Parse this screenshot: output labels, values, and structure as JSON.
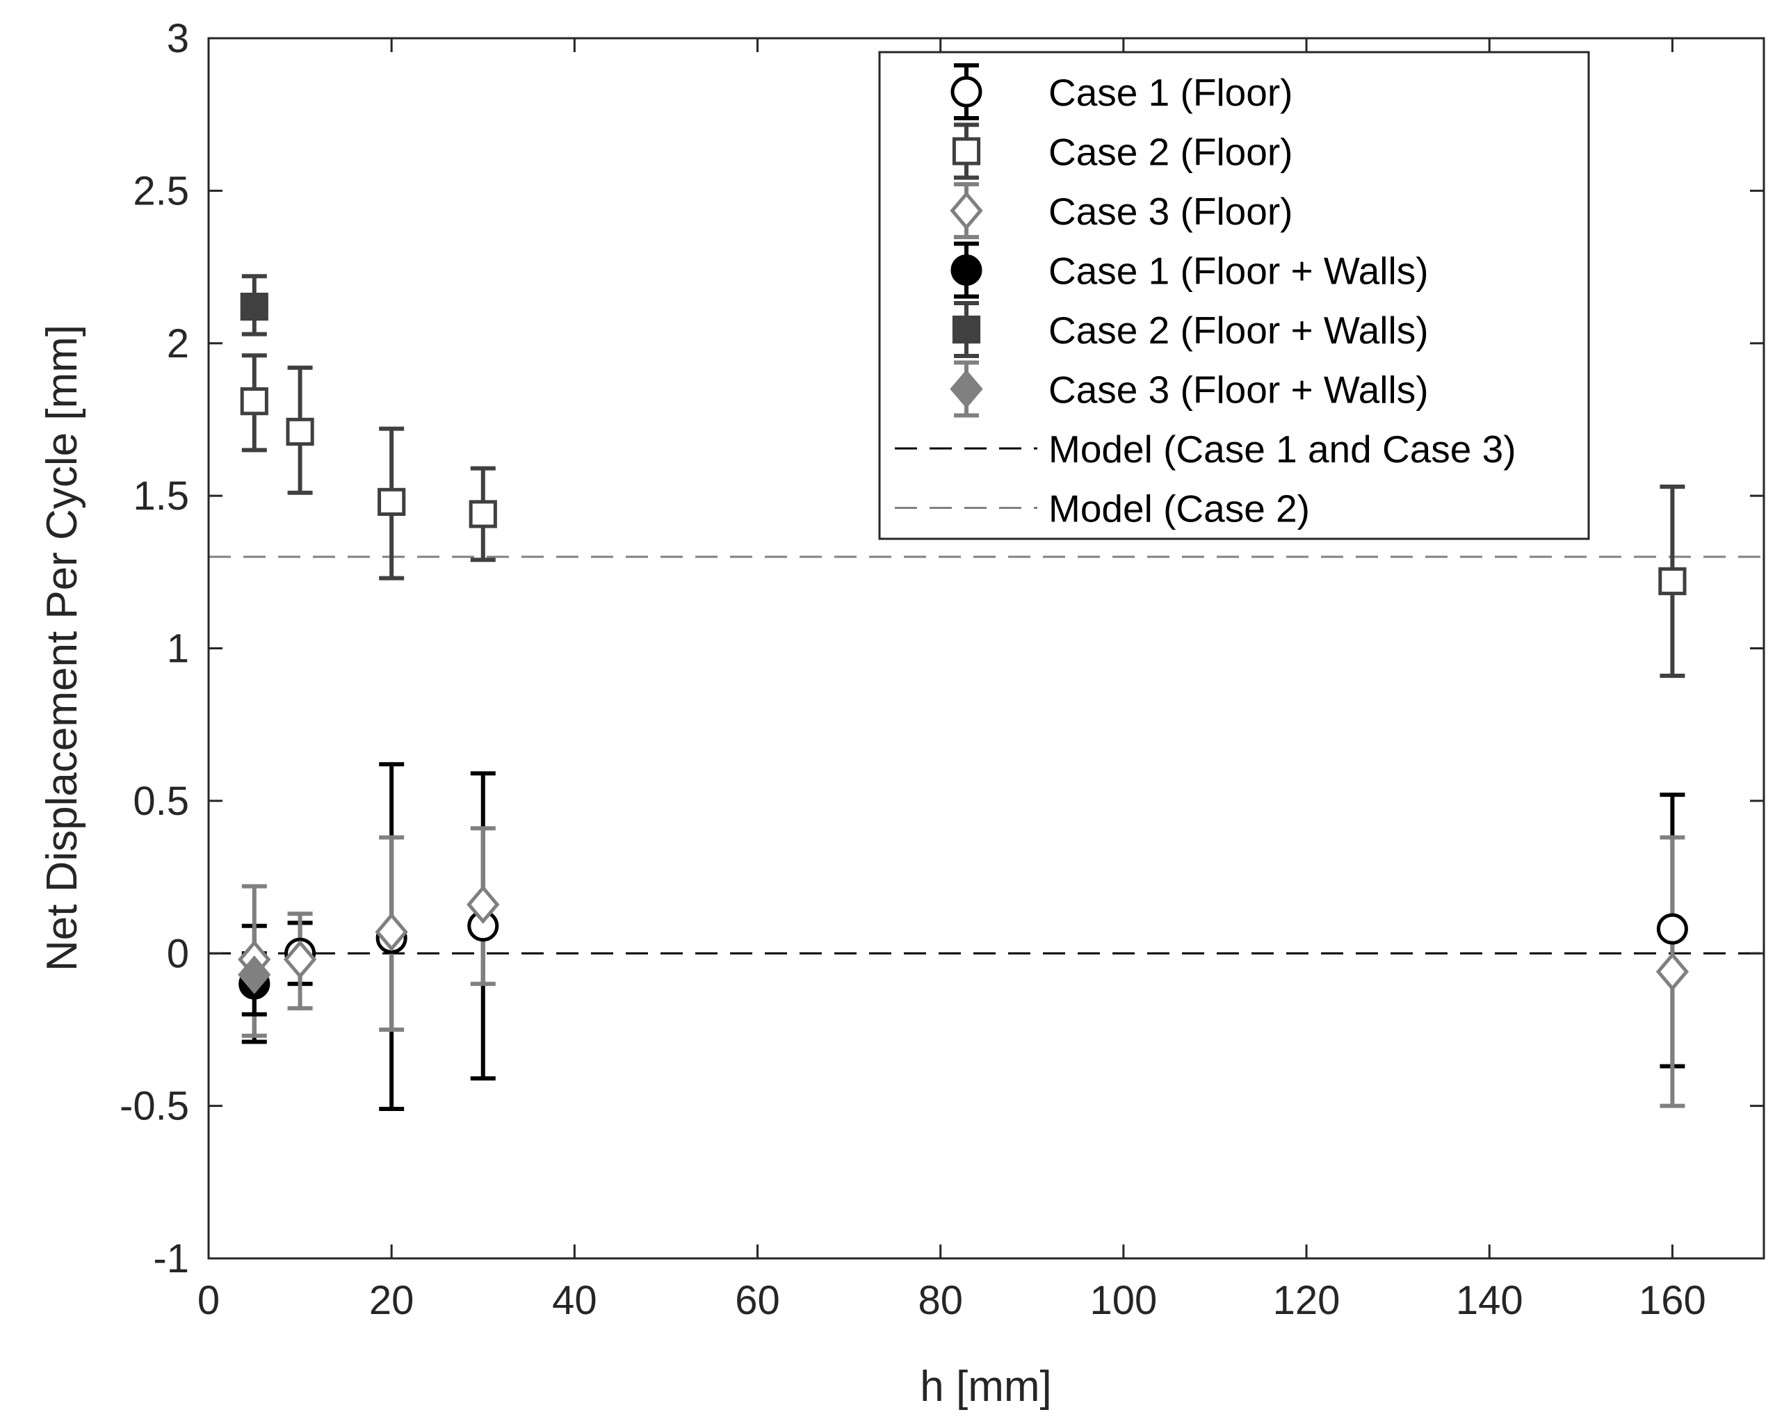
{
  "chart_data": {
    "type": "scatter",
    "xlabel": "h [mm]",
    "ylabel": "Net Displacement Per Cycle [mm]",
    "xlim": [
      0,
      170
    ],
    "ylim": [
      -1,
      3
    ],
    "xticks": [
      0,
      20,
      40,
      60,
      80,
      100,
      120,
      140,
      160
    ],
    "xtick_labels": [
      "0",
      "20",
      "40",
      "60",
      "80",
      "100",
      "120",
      "140",
      "160"
    ],
    "yticks": [
      -1,
      -0.5,
      0,
      0.5,
      1,
      1.5,
      2,
      2.5,
      3
    ],
    "ytick_labels": [
      "-1",
      "-0.5",
      "0",
      "0.5",
      "1",
      "1.5",
      "2",
      "2.5",
      "3"
    ],
    "grid": false,
    "legend_position": "top-right",
    "series": [
      {
        "name": "Case 1 (Floor)",
        "marker": "circle",
        "filled": false,
        "color": "#000000",
        "x": [
          5,
          10,
          20,
          30,
          160
        ],
        "y": [
          -0.1,
          0.0,
          0.05,
          0.09,
          0.08
        ],
        "err_low": [
          -0.29,
          -0.1,
          -0.51,
          -0.41,
          -0.37
        ],
        "err_high": [
          0.09,
          0.1,
          0.62,
          0.59,
          0.52
        ]
      },
      {
        "name": "Case 2 (Floor)",
        "marker": "square",
        "filled": false,
        "color": "#404040",
        "x": [
          5,
          10,
          20,
          30,
          160
        ],
        "y": [
          1.81,
          1.71,
          1.48,
          1.44,
          1.22
        ],
        "err_low": [
          1.65,
          1.51,
          1.23,
          1.29,
          0.91
        ],
        "err_high": [
          1.96,
          1.92,
          1.72,
          1.59,
          1.53
        ]
      },
      {
        "name": "Case 3 (Floor)",
        "marker": "diamond",
        "filled": false,
        "color": "#808080",
        "x": [
          5,
          10,
          20,
          30,
          160
        ],
        "y": [
          -0.02,
          -0.02,
          0.07,
          0.16,
          -0.06
        ],
        "err_low": [
          -0.27,
          -0.18,
          -0.25,
          -0.1,
          -0.5
        ],
        "err_high": [
          0.22,
          0.13,
          0.38,
          0.41,
          0.38
        ]
      },
      {
        "name": "Case 1 (Floor + Walls)",
        "marker": "circle",
        "filled": true,
        "color": "#000000",
        "x": [
          5
        ],
        "y": [
          -0.1
        ],
        "err_low": [
          -0.2
        ],
        "err_high": [
          0.0
        ]
      },
      {
        "name": "Case 2 (Floor + Walls)",
        "marker": "square",
        "filled": true,
        "color": "#404040",
        "x": [
          5
        ],
        "y": [
          2.12
        ],
        "err_low": [
          2.03
        ],
        "err_high": [
          2.22
        ]
      },
      {
        "name": "Case 3 (Floor + Walls)",
        "marker": "diamond",
        "filled": true,
        "color": "#808080",
        "x": [
          5
        ],
        "y": [
          -0.07
        ],
        "err_low": [
          -0.12
        ],
        "err_high": [
          -0.02
        ]
      }
    ],
    "reference_lines": [
      {
        "name": "Model (Case 1 and Case 3)",
        "y": 0,
        "style": "dashed",
        "color": "#000000"
      },
      {
        "name": "Model (Case 2)",
        "y": 1.3,
        "style": "dashed",
        "color": "#808080"
      }
    ]
  }
}
